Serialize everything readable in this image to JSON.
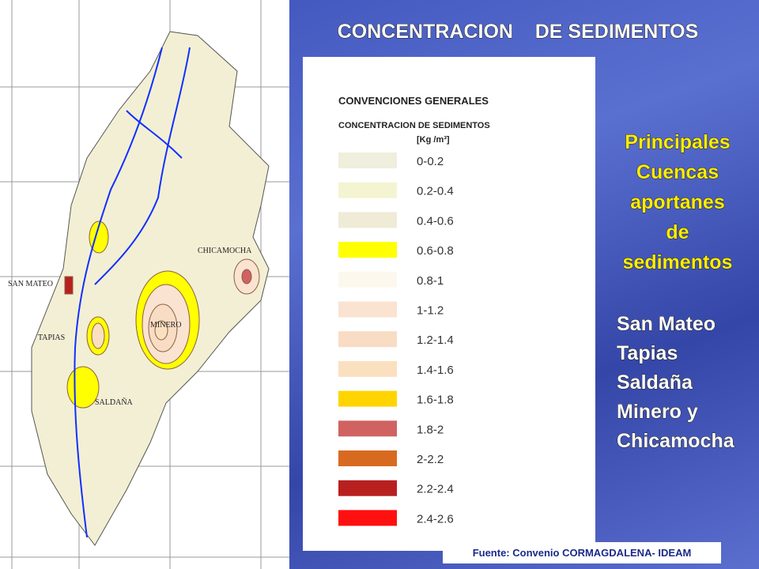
{
  "slide": {
    "title": "CONCENTRACION    DE SEDIMENTOS",
    "map_labels": [
      "SAN MATEO",
      "TAPIAS",
      "MINERO",
      "CHICAMOCHA",
      "SALDAÑA"
    ],
    "legend": {
      "title": "CONVENCIONES GENERALES",
      "subtitle": "CONCENTRACION DE SEDIMENTOS",
      "unit": "[Kg /m³]",
      "items": [
        {
          "label": "0-0.2",
          "color": "#f0eedc"
        },
        {
          "label": "0.2-0.4",
          "color": "#f4f4d2"
        },
        {
          "label": "0.4-0.6",
          "color": "#efebd6"
        },
        {
          "label": "0.6-0.8",
          "color": "#ffff00"
        },
        {
          "label": "0.8-1",
          "color": "#fdf8ee"
        },
        {
          "label": "1-1.2",
          "color": "#fae3d0"
        },
        {
          "label": "1.2-1.4",
          "color": "#f9dcc4"
        },
        {
          "label": "1.4-1.6",
          "color": "#fbe0c0"
        },
        {
          "label": "1.6-1.8",
          "color": "#ffd400"
        },
        {
          "label": "1.8-2",
          "color": "#d06262"
        },
        {
          "label": "2-2.2",
          "color": "#d86a20"
        },
        {
          "label": "2.2-2.4",
          "color": "#b82020"
        },
        {
          "label": "2.4-2.6",
          "color": "#ff1010"
        }
      ]
    },
    "heading_lines": [
      "Principales",
      "Cuencas",
      "aportanes",
      "de",
      "sedimentos"
    ],
    "basins": [
      "San Mateo",
      "Tapias",
      "Saldaña",
      "Minero y",
      "Chicamocha"
    ],
    "source": "Fuente: Convenio CORMAGDALENA- IDEAM"
  }
}
